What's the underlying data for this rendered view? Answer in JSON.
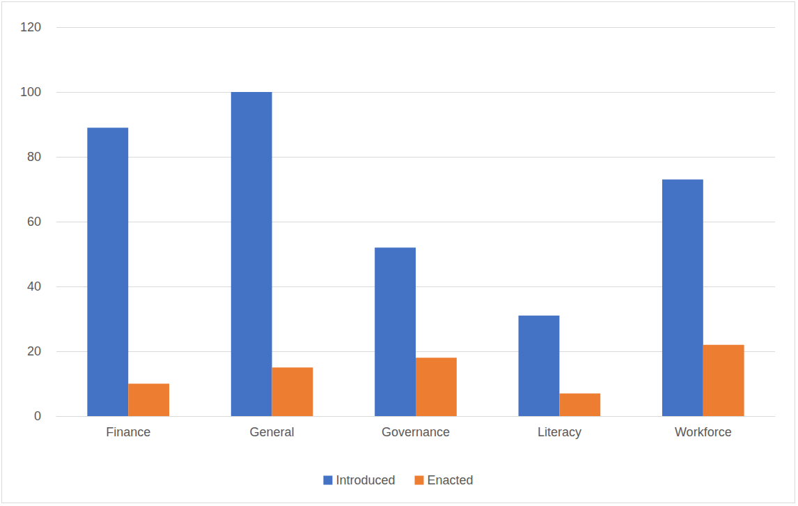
{
  "chart_data": {
    "type": "bar",
    "categories": [
      "Finance",
      "General",
      "Governance",
      "Literacy",
      "Workforce"
    ],
    "series": [
      {
        "name": "Introduced",
        "color": "#4472c4",
        "values": [
          89,
          100,
          52,
          31,
          73
        ]
      },
      {
        "name": "Enacted",
        "color": "#ed7d31",
        "values": [
          10,
          15,
          18,
          7,
          22
        ]
      }
    ],
    "ylim": [
      0,
      120
    ],
    "yticks": [
      0,
      20,
      40,
      60,
      80,
      100,
      120
    ],
    "grid": true,
    "legend": "bottom"
  }
}
